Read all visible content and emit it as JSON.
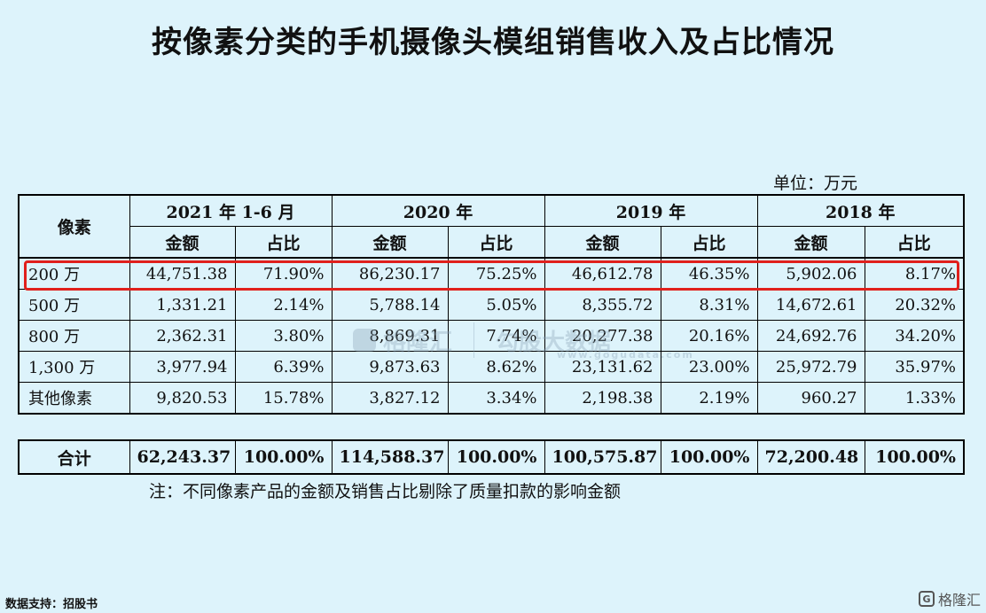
{
  "title": "按像素分类的手机摄像头模组销售收入及占比情况",
  "unit_label": "单位：万元",
  "table": {
    "corner_header": "像素",
    "years": [
      "2021 年 1-6 月",
      "2020 年",
      "2019 年",
      "2018 年"
    ],
    "sub_headers": [
      "金额",
      "占比"
    ],
    "rows": [
      {
        "label": "200 万",
        "cells": [
          "44,751.38",
          "71.90%",
          "86,230.17",
          "75.25%",
          "46,612.78",
          "46.35%",
          "5,902.06",
          "8.17%"
        ]
      },
      {
        "label": "500 万",
        "cells": [
          "1,331.21",
          "2.14%",
          "5,788.14",
          "5.05%",
          "8,355.72",
          "8.31%",
          "14,672.61",
          "20.32%"
        ]
      },
      {
        "label": "800 万",
        "cells": [
          "2,362.31",
          "3.80%",
          "8,869.31",
          "7.74%",
          "20,277.38",
          "20.16%",
          "24,692.76",
          "34.20%"
        ]
      },
      {
        "label": "1,300 万",
        "cells": [
          "3,977.94",
          "6.39%",
          "9,873.63",
          "8.62%",
          "23,131.62",
          "23.00%",
          "25,972.79",
          "35.97%"
        ]
      },
      {
        "label": "其他像素",
        "cells": [
          "9,820.53",
          "15.78%",
          "3,827.12",
          "3.34%",
          "2,198.38",
          "2.19%",
          "960.27",
          "1.33%"
        ]
      }
    ],
    "total": {
      "label": "合计",
      "cells": [
        "62,243.37",
        "100.00%",
        "114,588.37",
        "100.00%",
        "100,575.87",
        "100.00%",
        "72,200.48",
        "100.00%"
      ]
    }
  },
  "note": "注：不同像素产品的金额及销售占比剔除了质量扣款的影响金额",
  "watermark": {
    "left": "格隆汇",
    "right": "勾股大数据",
    "url": "www.gogudata.com"
  },
  "source": "数据支持：招股书",
  "brand": "格隆汇",
  "colors": {
    "background": "#ddf3fb",
    "highlight": "#e0201c"
  }
}
